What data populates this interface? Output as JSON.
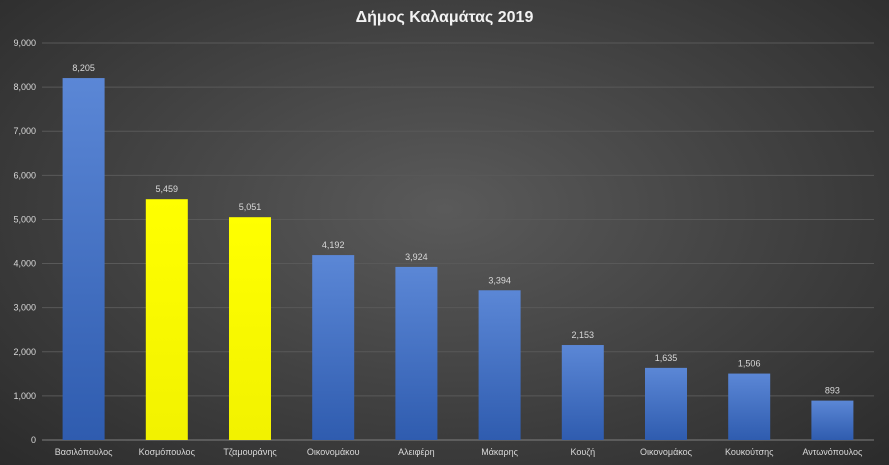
{
  "chart_data": {
    "type": "bar",
    "title": "Δήμος Καλαμάτας 2019",
    "xlabel": "",
    "ylabel": "",
    "ylim": [
      0,
      9000
    ],
    "yticks": [
      "0",
      "1,000",
      "2,000",
      "3,000",
      "4,000",
      "5,000",
      "6,000",
      "7,000",
      "8,000",
      "9,000"
    ],
    "ytick_values": [
      0,
      1000,
      2000,
      3000,
      4000,
      5000,
      6000,
      7000,
      8000,
      9000
    ],
    "categories": [
      "Βασιλόπουλος",
      "Κοσμόπουλος",
      "Τζαμουράνης",
      "Οικονομάκου",
      "Αλειφέρη",
      "Μάκαρης",
      "Κουζή",
      "Οικονομάκος",
      "Κουκούτσης",
      "Αντωνόπουλος"
    ],
    "values": [
      8205,
      5459,
      5051,
      4192,
      3924,
      3394,
      2153,
      1635,
      1506,
      893
    ],
    "data_labels": [
      "8,205",
      "5,459",
      "5,051",
      "4,192",
      "3,924",
      "3,394",
      "2,153",
      "1,635",
      "1,506",
      "893"
    ],
    "bar_colors": [
      "#4472c4",
      "#ffff00",
      "#ffff00",
      "#4472c4",
      "#4472c4",
      "#4472c4",
      "#4472c4",
      "#4472c4",
      "#4472c4",
      "#4472c4"
    ],
    "grid": true,
    "legend": "none"
  },
  "colors": {
    "background": "#404040",
    "text": "#d9d9d9",
    "title": "#f2f2f2",
    "gridline": "#595959",
    "blue_bar": "#4472c4",
    "yellow_bar": "#ffff00"
  }
}
